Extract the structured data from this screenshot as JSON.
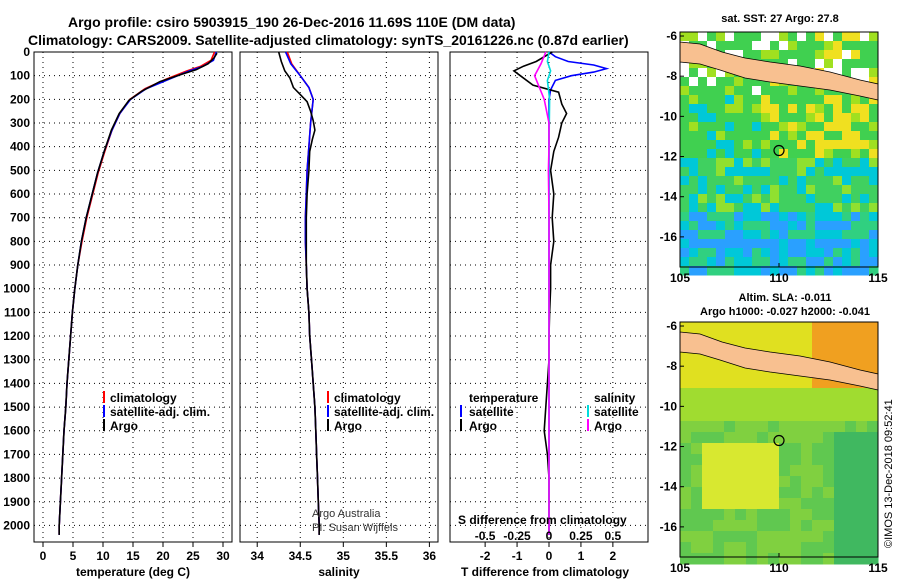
{
  "header": {
    "line1": "Argo profile: csiro 5903915_190 26-Dec-2016 11.69S 110E (DM data)",
    "line2": "Climatology: CARS2009. Satellite-adjusted climatology: synTS_20161226.nc (0.87d earlier)"
  },
  "chart_data": [
    {
      "type": "line",
      "xlabel": "temperature (deg C)",
      "ylabel": "",
      "xlim": [
        -1.5,
        31.5
      ],
      "ylim": [
        2070,
        0
      ],
      "y_inverted": true,
      "xticks": [
        0,
        5,
        10,
        15,
        20,
        25,
        30
      ],
      "yticks": [
        0,
        100,
        200,
        300,
        400,
        500,
        600,
        700,
        800,
        900,
        1000,
        1100,
        1200,
        1300,
        1400,
        1500,
        1600,
        1700,
        1800,
        1900,
        2000
      ],
      "grid": true,
      "legend_position": "lower-right",
      "legend": [
        "climatology",
        "satellite-adj. clim.",
        "Argo"
      ],
      "series": [
        {
          "name": "climatology",
          "color": "#ff0000",
          "points": [
            [
              28.6,
              0
            ],
            [
              28.0,
              35
            ],
            [
              26.3,
              60
            ],
            [
              24.0,
              80
            ],
            [
              20.5,
              115
            ],
            [
              17.0,
              155
            ],
            [
              14.5,
              200
            ],
            [
              12.8,
              260
            ],
            [
              11.5,
              330
            ],
            [
              10.3,
              420
            ],
            [
              9.2,
              510
            ],
            [
              8.3,
              600
            ],
            [
              7.3,
              700
            ],
            [
              6.5,
              800
            ],
            [
              5.8,
              900
            ],
            [
              5.3,
              1000
            ],
            [
              4.9,
              1100
            ],
            [
              4.6,
              1200
            ],
            [
              4.3,
              1300
            ],
            [
              4.0,
              1400
            ],
            [
              3.8,
              1500
            ],
            [
              3.5,
              1600
            ],
            [
              3.3,
              1700
            ],
            [
              3.1,
              1800
            ],
            [
              2.9,
              1900
            ],
            [
              2.7,
              2000
            ],
            [
              2.7,
              2040
            ]
          ]
        },
        {
          "name": "satellite-adj. clim.",
          "color": "#0000ff",
          "points": [
            [
              28.9,
              0
            ],
            [
              28.4,
              35
            ],
            [
              26.7,
              60
            ],
            [
              24.4,
              80
            ],
            [
              21.0,
              115
            ],
            [
              17.2,
              155
            ],
            [
              14.6,
              200
            ],
            [
              12.8,
              260
            ],
            [
              11.5,
              330
            ],
            [
              10.2,
              420
            ],
            [
              9.1,
              510
            ],
            [
              8.2,
              600
            ],
            [
              7.2,
              700
            ],
            [
              6.4,
              800
            ],
            [
              5.8,
              900
            ],
            [
              5.3,
              1000
            ],
            [
              4.9,
              1100
            ],
            [
              4.6,
              1200
            ],
            [
              4.3,
              1300
            ],
            [
              4.0,
              1400
            ],
            [
              3.8,
              1500
            ],
            [
              3.5,
              1600
            ],
            [
              3.3,
              1700
            ],
            [
              3.1,
              1800
            ],
            [
              2.9,
              1900
            ],
            [
              2.7,
              2000
            ],
            [
              2.7,
              2040
            ]
          ]
        },
        {
          "name": "Argo",
          "color": "#000000",
          "points": [
            [
              29.0,
              5
            ],
            [
              28.5,
              25
            ],
            [
              27.5,
              50
            ],
            [
              25.5,
              75
            ],
            [
              23.0,
              95
            ],
            [
              19.5,
              125
            ],
            [
              16.5,
              165
            ],
            [
              14.3,
              205
            ],
            [
              12.7,
              260
            ],
            [
              11.4,
              330
            ],
            [
              10.2,
              420
            ],
            [
              9.1,
              510
            ],
            [
              8.2,
              600
            ],
            [
              7.2,
              700
            ],
            [
              6.4,
              800
            ],
            [
              5.8,
              900
            ],
            [
              5.3,
              1000
            ],
            [
              4.9,
              1100
            ],
            [
              4.6,
              1200
            ],
            [
              4.3,
              1300
            ],
            [
              4.0,
              1400
            ],
            [
              3.8,
              1500
            ],
            [
              3.5,
              1600
            ],
            [
              3.3,
              1700
            ],
            [
              3.1,
              1800
            ],
            [
              2.9,
              1900
            ],
            [
              2.7,
              2000
            ],
            [
              2.7,
              2040
            ]
          ]
        }
      ]
    },
    {
      "type": "line",
      "xlabel": "salinity",
      "xlim": [
        33.8,
        36.1
      ],
      "ylim": [
        2070,
        0
      ],
      "y_inverted": true,
      "xticks": [
        34,
        34.5,
        35,
        35.5,
        36
      ],
      "grid": true,
      "legend_position": "lower-right",
      "legend": [
        "climatology",
        "satellite-adj. clim.",
        "Argo"
      ],
      "annotation_lines": [
        "Argo Australia",
        "PI: Susan Wijffels"
      ],
      "series": [
        {
          "name": "climatology",
          "color": "#ff0000",
          "points": [
            [
              34.35,
              0
            ],
            [
              34.4,
              50
            ],
            [
              34.5,
              100
            ],
            [
              34.6,
              150
            ],
            [
              34.65,
              200
            ],
            [
              34.62,
              300
            ],
            [
              34.6,
              400
            ],
            [
              34.58,
              500
            ],
            [
              34.57,
              600
            ],
            [
              34.56,
              700
            ],
            [
              34.56,
              800
            ],
            [
              34.57,
              900
            ],
            [
              34.58,
              1000
            ],
            [
              34.6,
              1100
            ],
            [
              34.61,
              1200
            ],
            [
              34.63,
              1300
            ],
            [
              34.65,
              1400
            ],
            [
              34.67,
              1500
            ],
            [
              34.68,
              1600
            ],
            [
              34.69,
              1700
            ],
            [
              34.7,
              1800
            ],
            [
              34.71,
              1900
            ],
            [
              34.72,
              2000
            ],
            [
              34.72,
              2040
            ]
          ]
        },
        {
          "name": "satellite-adj. clim.",
          "color": "#0000ff",
          "points": [
            [
              34.33,
              0
            ],
            [
              34.39,
              50
            ],
            [
              34.5,
              100
            ],
            [
              34.6,
              150
            ],
            [
              34.65,
              200
            ],
            [
              34.62,
              300
            ],
            [
              34.6,
              400
            ],
            [
              34.58,
              500
            ],
            [
              34.57,
              600
            ],
            [
              34.56,
              700
            ],
            [
              34.56,
              800
            ],
            [
              34.57,
              900
            ],
            [
              34.58,
              1000
            ],
            [
              34.6,
              1100
            ],
            [
              34.61,
              1200
            ],
            [
              34.63,
              1300
            ],
            [
              34.65,
              1400
            ],
            [
              34.67,
              1500
            ],
            [
              34.68,
              1600
            ],
            [
              34.69,
              1700
            ],
            [
              34.7,
              1800
            ],
            [
              34.71,
              1900
            ],
            [
              34.72,
              2000
            ],
            [
              34.72,
              2040
            ]
          ]
        },
        {
          "name": "Argo",
          "color": "#000000",
          "points": [
            [
              34.25,
              0
            ],
            [
              34.28,
              40
            ],
            [
              34.32,
              80
            ],
            [
              34.38,
              110
            ],
            [
              34.42,
              150
            ],
            [
              34.5,
              180
            ],
            [
              34.58,
              210
            ],
            [
              34.62,
              250
            ],
            [
              34.65,
              290
            ],
            [
              34.67,
              330
            ],
            [
              34.64,
              370
            ],
            [
              34.61,
              420
            ],
            [
              34.6,
              500
            ],
            [
              34.58,
              600
            ],
            [
              34.57,
              700
            ],
            [
              34.57,
              800
            ],
            [
              34.57,
              900
            ],
            [
              34.58,
              1000
            ],
            [
              34.6,
              1100
            ],
            [
              34.61,
              1200
            ],
            [
              34.63,
              1300
            ],
            [
              34.65,
              1400
            ],
            [
              34.67,
              1500
            ],
            [
              34.68,
              1600
            ],
            [
              34.69,
              1700
            ],
            [
              34.7,
              1800
            ],
            [
              34.71,
              1900
            ],
            [
              34.72,
              2000
            ],
            [
              34.72,
              2040
            ]
          ]
        }
      ]
    },
    {
      "type": "line",
      "xlabel": "T difference from climatology",
      "secondary_xlabel": "S difference from climatology",
      "xlim": [
        -3.1,
        3.1
      ],
      "ylim": [
        2070,
        0
      ],
      "y_inverted": true,
      "xticks": [
        -2,
        -1,
        0,
        1,
        2
      ],
      "secondary_xticks": [
        "-0.5",
        "-0.25",
        "0",
        "0.25",
        "0.5"
      ],
      "grid": true,
      "legend_position": "lower",
      "legend_groups": {
        "temperature": [
          "satellite",
          "Argo"
        ],
        "salinity": [
          "satellite",
          "Argo"
        ]
      },
      "series": [
        {
          "name": "temperature satellite",
          "color": "#0000ff",
          "points": [
            [
              0,
              0
            ],
            [
              0.2,
              20
            ],
            [
              0.6,
              40
            ],
            [
              1.4,
              55
            ],
            [
              1.8,
              70
            ],
            [
              1.4,
              85
            ],
            [
              0.7,
              100
            ],
            [
              0.2,
              120
            ],
            [
              0.05,
              160
            ],
            [
              0,
              200
            ],
            [
              0,
              2040
            ]
          ]
        },
        {
          "name": "temperature Argo",
          "color": "#000000",
          "points": [
            [
              0.1,
              0
            ],
            [
              -0.4,
              40
            ],
            [
              -0.8,
              60
            ],
            [
              -1.1,
              80
            ],
            [
              -0.9,
              100
            ],
            [
              -0.5,
              140
            ],
            [
              0.3,
              170
            ],
            [
              0.4,
              220
            ],
            [
              0.55,
              260
            ],
            [
              0.4,
              300
            ],
            [
              0.3,
              360
            ],
            [
              0.15,
              420
            ],
            [
              0.05,
              500
            ],
            [
              0.15,
              600
            ],
            [
              0.1,
              700
            ],
            [
              0.15,
              800
            ],
            [
              0.05,
              900
            ],
            [
              0.05,
              1000
            ],
            [
              0.02,
              1100
            ],
            [
              0,
              1200
            ],
            [
              0,
              1300
            ],
            [
              -0.05,
              1400
            ],
            [
              -0.1,
              1500
            ],
            [
              -0.15,
              1600
            ],
            [
              -0.05,
              1700
            ],
            [
              0,
              1800
            ],
            [
              0,
              1900
            ],
            [
              0,
              2000
            ],
            [
              0,
              2040
            ]
          ]
        },
        {
          "name": "salinity satellite",
          "color": "#00dddd",
          "points": [
            [
              0,
              0
            ],
            [
              -0.05,
              40
            ],
            [
              0.05,
              80
            ],
            [
              -0.05,
              120
            ],
            [
              0.02,
              200
            ],
            [
              0,
              400
            ],
            [
              0,
              600
            ],
            [
              0,
              1000
            ],
            [
              0,
              2040
            ]
          ]
        },
        {
          "name": "salinity Argo",
          "color": "#ff00ff",
          "points": [
            [
              -0.1,
              0
            ],
            [
              -0.25,
              50
            ],
            [
              -0.45,
              100
            ],
            [
              -0.3,
              150
            ],
            [
              -0.15,
              200
            ],
            [
              0,
              300
            ],
            [
              0,
              400
            ],
            [
              -0.02,
              500
            ],
            [
              0,
              700
            ],
            [
              0,
              1000
            ],
            [
              0,
              1500
            ],
            [
              0,
              2040
            ]
          ]
        }
      ]
    },
    {
      "type": "heatmap",
      "title": "sat. SST: 27 Argo: 27.8",
      "xticks": [
        105,
        110,
        115
      ],
      "yticks": [
        -6,
        -8,
        -10,
        -12,
        -14,
        -16
      ],
      "xlim": [
        105,
        115
      ],
      "ylim": [
        -17.5,
        -5.8
      ],
      "marker": {
        "lon": 110,
        "lat": -11.7
      }
    },
    {
      "type": "heatmap",
      "title_line1": "Altim. SLA: -0.011",
      "title_line2": "Argo h1000: -0.027 h2000: -0.041",
      "xticks": [
        105,
        110,
        115
      ],
      "yticks": [
        -6,
        -8,
        -10,
        -12,
        -14,
        -16
      ],
      "xlim": [
        105,
        115
      ],
      "ylim": [
        -17.5,
        -5.8
      ],
      "marker": {
        "lon": 110,
        "lat": -11.7
      }
    }
  ],
  "watermark": "©IMOS 13-Dec-2018 09:52:41"
}
